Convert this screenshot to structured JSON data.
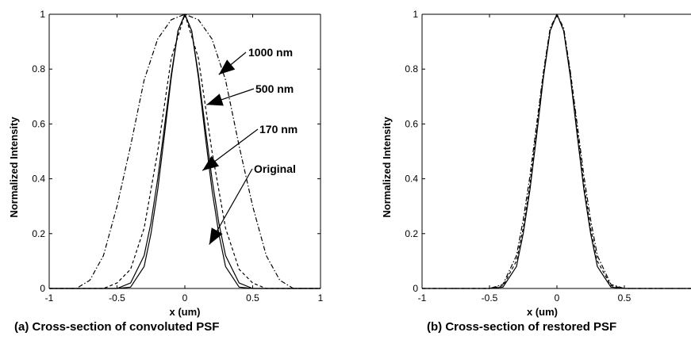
{
  "chart_data": [
    {
      "type": "line",
      "panel_caption": "(a) Cross-section of convoluted PSF",
      "xlabel": "x (um)",
      "ylabel": "Normalized Intensity",
      "xlim": [
        -1,
        1
      ],
      "ylim": [
        0,
        1
      ],
      "xticks": [
        "-1",
        "-0.5",
        "0",
        "0.5",
        "1"
      ],
      "yticks": [
        "0",
        "0.2",
        "0.4",
        "0.6",
        "0.8",
        "1"
      ],
      "grid": false,
      "series": [
        {
          "name": "Original",
          "style": "solid",
          "x": [
            -1,
            -0.5,
            -0.4,
            -0.3,
            -0.25,
            -0.2,
            -0.15,
            -0.1,
            -0.05,
            0,
            0.05,
            0.1,
            0.15,
            0.2,
            0.25,
            0.3,
            0.4,
            0.5,
            1
          ],
          "y": [
            0,
            0,
            0.005,
            0.08,
            0.2,
            0.36,
            0.56,
            0.77,
            0.94,
            1,
            0.94,
            0.77,
            0.56,
            0.36,
            0.2,
            0.08,
            0.005,
            0,
            0
          ]
        },
        {
          "name": "170 nm",
          "style": "solid",
          "x": [
            -1,
            -0.5,
            -0.4,
            -0.3,
            -0.25,
            -0.2,
            -0.15,
            -0.1,
            -0.05,
            0,
            0.05,
            0.1,
            0.15,
            0.2,
            0.25,
            0.3,
            0.4,
            0.5,
            1
          ],
          "y": [
            0,
            0,
            0.02,
            0.12,
            0.24,
            0.4,
            0.59,
            0.78,
            0.94,
            1,
            0.94,
            0.78,
            0.59,
            0.4,
            0.24,
            0.12,
            0.02,
            0,
            0
          ]
        },
        {
          "name": "500 nm",
          "style": "dashed",
          "x": [
            -1,
            -0.6,
            -0.5,
            -0.4,
            -0.3,
            -0.2,
            -0.1,
            0,
            0.1,
            0.2,
            0.3,
            0.4,
            0.5,
            0.6,
            1
          ],
          "y": [
            0,
            0,
            0.02,
            0.07,
            0.22,
            0.5,
            0.84,
            1,
            0.84,
            0.5,
            0.22,
            0.07,
            0.02,
            0,
            0
          ]
        },
        {
          "name": "1000 nm",
          "style": "dashdot",
          "x": [
            -1,
            -0.8,
            -0.7,
            -0.6,
            -0.5,
            -0.4,
            -0.3,
            -0.2,
            -0.1,
            0,
            0.1,
            0.2,
            0.3,
            0.4,
            0.5,
            0.6,
            0.7,
            0.8,
            1
          ],
          "y": [
            0,
            0,
            0.03,
            0.12,
            0.3,
            0.52,
            0.76,
            0.91,
            0.98,
            1,
            0.98,
            0.91,
            0.76,
            0.52,
            0.3,
            0.12,
            0.03,
            0,
            0
          ]
        }
      ],
      "annotations": [
        {
          "text": "1000 nm",
          "target": [
            0.25,
            0.78
          ]
        },
        {
          "text": "500 nm",
          "target": [
            0.16,
            0.67
          ]
        },
        {
          "text": "170 nm",
          "target": [
            0.13,
            0.43
          ]
        },
        {
          "text": "Original",
          "target": [
            0.18,
            0.16
          ]
        }
      ]
    },
    {
      "type": "line",
      "panel_caption": "(b) Cross-section of restored PSF",
      "xlabel": "x (um)",
      "ylabel": "Normalized Intensity",
      "xlim": [
        -1,
        1
      ],
      "ylim": [
        0,
        1
      ],
      "xticks": [
        "-1",
        "-0.5",
        "0",
        "0.5"
      ],
      "yticks": [
        "0",
        "0.2",
        "0.4",
        "0.6",
        "0.8",
        "1"
      ],
      "grid": false,
      "series": [
        {
          "style": "solid",
          "x": [
            -1,
            -0.5,
            -0.4,
            -0.3,
            -0.25,
            -0.2,
            -0.15,
            -0.1,
            -0.05,
            0,
            0.05,
            0.1,
            0.15,
            0.2,
            0.25,
            0.3,
            0.4,
            0.5,
            1
          ],
          "y": [
            0,
            0,
            0.005,
            0.08,
            0.2,
            0.36,
            0.56,
            0.77,
            0.94,
            1,
            0.94,
            0.77,
            0.56,
            0.36,
            0.2,
            0.08,
            0.005,
            0,
            0
          ]
        },
        {
          "style": "dashed",
          "x": [
            -1,
            -0.5,
            -0.4,
            -0.3,
            -0.25,
            -0.2,
            -0.15,
            -0.1,
            -0.05,
            0,
            0.05,
            0.1,
            0.15,
            0.2,
            0.25,
            0.3,
            0.4,
            0.5,
            1
          ],
          "y": [
            0,
            0,
            0.01,
            0.1,
            0.22,
            0.38,
            0.58,
            0.78,
            0.94,
            1,
            0.94,
            0.78,
            0.58,
            0.38,
            0.22,
            0.1,
            0.01,
            0,
            0
          ]
        },
        {
          "style": "dashdot",
          "x": [
            -1,
            -0.5,
            -0.4,
            -0.3,
            -0.25,
            -0.2,
            -0.15,
            -0.1,
            -0.05,
            0,
            0.05,
            0.1,
            0.15,
            0.2,
            0.25,
            0.3,
            0.4,
            0.5,
            1
          ],
          "y": [
            0,
            0,
            0.015,
            0.12,
            0.25,
            0.41,
            0.6,
            0.79,
            0.95,
            1,
            0.95,
            0.79,
            0.6,
            0.41,
            0.25,
            0.12,
            0.015,
            0,
            0
          ]
        }
      ]
    }
  ]
}
